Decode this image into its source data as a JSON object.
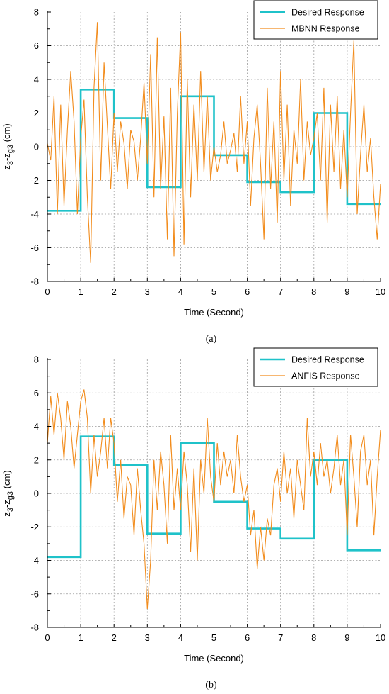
{
  "chart_data": [
    {
      "type": "line",
      "panel_label": "(a)",
      "xlabel": "Time (Second)",
      "ylabel": "z3-zg3 (cm)",
      "xlim": [
        0,
        10
      ],
      "ylim": [
        -8,
        8
      ],
      "xticks": [
        "0",
        "1",
        "2",
        "3",
        "4",
        "5",
        "6",
        "7",
        "8",
        "9",
        "10"
      ],
      "yticks": [
        "8",
        "6",
        "4",
        "2",
        "0",
        "-2",
        "-4",
        "-6",
        "-8"
      ],
      "grid": true,
      "legend_position": "top-right",
      "series": [
        {
          "name": "Desired Response",
          "color": "#1fc2c9",
          "step": true,
          "x": [
            0,
            1,
            2,
            3,
            4,
            5,
            6,
            7,
            8,
            9,
            10
          ],
          "y": [
            -3.8,
            3.4,
            1.7,
            -2.4,
            3.0,
            -0.5,
            -2.1,
            -2.7,
            2.0,
            -3.4,
            -3.4
          ]
        },
        {
          "name": "MBNN Response",
          "color": "#f28c1c",
          "x": [
            0.0,
            0.1,
            0.2,
            0.3,
            0.4,
            0.5,
            0.6,
            0.7,
            0.8,
            0.9,
            1.0,
            1.1,
            1.2,
            1.3,
            1.4,
            1.5,
            1.6,
            1.7,
            1.8,
            1.9,
            2.0,
            2.1,
            2.2,
            2.3,
            2.4,
            2.5,
            2.6,
            2.7,
            2.8,
            2.9,
            3.0,
            3.1,
            3.2,
            3.3,
            3.4,
            3.5,
            3.6,
            3.7,
            3.8,
            3.9,
            4.0,
            4.1,
            4.2,
            4.3,
            4.4,
            4.5,
            4.6,
            4.7,
            4.8,
            4.9,
            5.0,
            5.1,
            5.2,
            5.3,
            5.4,
            5.5,
            5.6,
            5.7,
            5.8,
            5.9,
            6.0,
            6.1,
            6.2,
            6.3,
            6.4,
            6.5,
            6.6,
            6.7,
            6.8,
            6.9,
            7.0,
            7.1,
            7.2,
            7.3,
            7.4,
            7.5,
            7.6,
            7.7,
            7.8,
            7.9,
            8.0,
            8.1,
            8.2,
            8.3,
            8.4,
            8.5,
            8.6,
            8.7,
            8.8,
            8.9,
            9.0,
            9.1,
            9.2,
            9.3,
            9.4,
            9.5,
            9.6,
            9.7,
            9.8,
            9.9,
            10.0
          ],
          "y": [
            0.2,
            -0.8,
            3.0,
            -4.0,
            2.5,
            -3.5,
            1.0,
            4.5,
            1.5,
            -4.0,
            0.5,
            2.8,
            -3.0,
            -6.9,
            3.5,
            7.4,
            -2.0,
            5.0,
            1.2,
            -2.5,
            2.0,
            -1.5,
            1.5,
            0.2,
            -2.5,
            1.0,
            0.3,
            -2.0,
            0.5,
            3.8,
            -1.0,
            5.5,
            -3.0,
            6.5,
            -2.5,
            1.8,
            -5.5,
            3.5,
            -6.5,
            2.0,
            6.8,
            -5.8,
            4.0,
            -3.0,
            2.5,
            -2.0,
            4.5,
            -1.5,
            3.0,
            -2.0,
            0.0,
            -1.5,
            -0.5,
            1.5,
            -1.0,
            -0.2,
            0.8,
            -1.5,
            3.0,
            -1.0,
            1.5,
            -3.5,
            0.5,
            2.5,
            -1.0,
            -5.5,
            3.5,
            -2.5,
            1.5,
            -4.5,
            4.5,
            -2.0,
            2.5,
            -3.5,
            1.0,
            -1.0,
            4.0,
            -2.0,
            1.5,
            -0.5,
            0.5,
            2.0,
            -2.0,
            3.5,
            -4.5,
            2.5,
            -1.5,
            3.0,
            -2.5,
            1.0,
            -3.0,
            2.0,
            6.3,
            -4.0,
            -0.5,
            2.5,
            -1.5,
            0.5,
            -3.0,
            -5.5,
            -2.2
          ]
        }
      ]
    },
    {
      "type": "line",
      "panel_label": "(b)",
      "xlabel": "Time (Second)",
      "ylabel": "z3-zg3 (cm)",
      "xlim": [
        0,
        10
      ],
      "ylim": [
        -8,
        8
      ],
      "xticks": [
        "0",
        "1",
        "2",
        "3",
        "4",
        "5",
        "6",
        "7",
        "8",
        "9",
        "10"
      ],
      "yticks": [
        "8",
        "6",
        "4",
        "2",
        "0",
        "-2",
        "-4",
        "-6",
        "-8"
      ],
      "grid": true,
      "legend_position": "top-right",
      "series": [
        {
          "name": "Desired Response",
          "color": "#1fc2c9",
          "step": true,
          "x": [
            0,
            1,
            2,
            3,
            4,
            5,
            6,
            7,
            8,
            9,
            10
          ],
          "y": [
            -3.8,
            3.4,
            1.7,
            -2.4,
            3.0,
            -0.5,
            -2.1,
            -2.7,
            2.0,
            -3.4,
            -3.4
          ]
        },
        {
          "name": "ANFIS Response",
          "color": "#f28c1c",
          "x": [
            0.0,
            0.1,
            0.2,
            0.3,
            0.4,
            0.5,
            0.6,
            0.7,
            0.8,
            0.9,
            1.0,
            1.1,
            1.2,
            1.3,
            1.4,
            1.5,
            1.6,
            1.7,
            1.8,
            1.9,
            2.0,
            2.1,
            2.2,
            2.3,
            2.4,
            2.5,
            2.6,
            2.7,
            2.8,
            2.9,
            3.0,
            3.1,
            3.2,
            3.3,
            3.4,
            3.5,
            3.6,
            3.7,
            3.8,
            3.9,
            4.0,
            4.1,
            4.2,
            4.3,
            4.4,
            4.5,
            4.6,
            4.7,
            4.8,
            4.9,
            5.0,
            5.1,
            5.2,
            5.3,
            5.4,
            5.5,
            5.6,
            5.7,
            5.8,
            5.9,
            6.0,
            6.1,
            6.2,
            6.3,
            6.4,
            6.5,
            6.6,
            6.7,
            6.8,
            6.9,
            7.0,
            7.1,
            7.2,
            7.3,
            7.4,
            7.5,
            7.6,
            7.7,
            7.8,
            7.9,
            8.0,
            8.1,
            8.2,
            8.3,
            8.4,
            8.5,
            8.6,
            8.7,
            8.8,
            8.9,
            9.0,
            9.1,
            9.2,
            9.3,
            9.4,
            9.5,
            9.6,
            9.7,
            9.8,
            9.9,
            10.0
          ],
          "y": [
            3.0,
            5.8,
            3.5,
            6.0,
            4.5,
            2.0,
            5.5,
            4.0,
            1.5,
            3.5,
            5.5,
            6.2,
            4.5,
            0.0,
            3.5,
            1.0,
            2.5,
            4.5,
            1.5,
            4.5,
            3.0,
            -0.5,
            2.0,
            -1.5,
            1.0,
            0.5,
            -2.5,
            1.5,
            -1.0,
            -3.0,
            -6.9,
            -4.0,
            2.0,
            -1.0,
            2.5,
            0.5,
            -3.0,
            3.5,
            -1.0,
            1.5,
            -1.0,
            2.5,
            0.5,
            -3.5,
            1.5,
            -4.0,
            2.0,
            0.0,
            4.5,
            1.0,
            -0.5,
            3.0,
            0.5,
            2.5,
            1.0,
            2.0,
            0.0,
            3.5,
            1.0,
            -0.5,
            0.5,
            -2.5,
            -1.0,
            -4.5,
            -2.0,
            -4.0,
            -1.5,
            -2.5,
            0.5,
            1.5,
            -0.5,
            2.5,
            0.0,
            1.5,
            -1.5,
            2.0,
            0.5,
            -1.0,
            4.5,
            1.0,
            2.5,
            0.5,
            3.0,
            1.0,
            2.0,
            0.0,
            1.5,
            3.5,
            0.5,
            2.0,
            -2.5,
            3.5,
            1.0,
            -2.0,
            2.5,
            3.5,
            0.5,
            2.0,
            -2.5,
            1.0,
            3.8
          ]
        }
      ]
    }
  ]
}
